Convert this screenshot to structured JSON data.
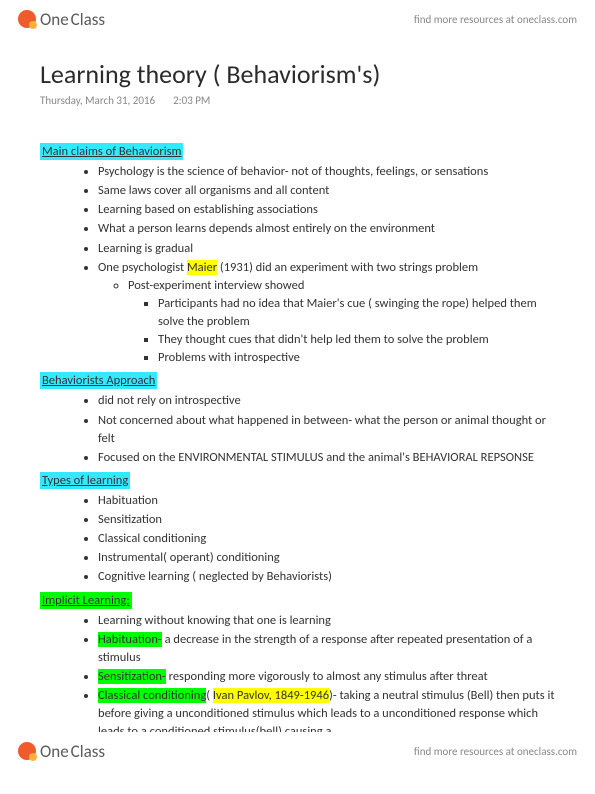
{
  "brand": {
    "one": "One",
    "class": "Class"
  },
  "tagline": "find more resources at oneclass.com",
  "title": "Learning theory ( Behaviorism's)",
  "meta": {
    "date": "Thursday, March 31, 2016",
    "time": "2:03 PM"
  },
  "sections": {
    "main_claims": {
      "heading": "Main claims of Behaviorism",
      "items": [
        "Psychology is the science of behavior- not of thoughts, feelings, or sensations",
        "Same laws cover all organisms and all content",
        "Learning based on establishing associations",
        "What a person learns depends almost entirely on the environment",
        "Learning is gradual"
      ],
      "maier_pre": "One psychologist ",
      "maier_hl": "Maier",
      "maier_post": " (1931) did an experiment with two strings problem",
      "sub1": "Post-experiment interview showed",
      "sub2a": "Participants had no idea that Maier's cue ( swinging the rope) helped them solve the problem",
      "sub2b": "They thought cues that didn't help led them to solve the problem",
      "sub2c": "Problems with introspective"
    },
    "approach": {
      "heading": "Behaviorists Approach",
      "items": [
        "did not rely on introspective",
        "Not concerned about what happened in between- what the person or animal thought or felt",
        "Focused on the ENVIRONMENTAL STIMULUS and the animal's BEHAVIORAL REPSONSE"
      ]
    },
    "types": {
      "heading": "Types of learning",
      "items": [
        "Habituation",
        "Sensitization",
        "Classical conditioning",
        "Instrumental( operant) conditioning",
        "Cognitive learning ( neglected by Behaviorists)"
      ]
    },
    "implicit": {
      "heading": "Implicit Learning:",
      "intro": "Learning without knowing that one is learning",
      "hab_hl": "Habituation-",
      "hab_txt": " a decrease in the strength of a response after repeated presentation of a stimulus",
      "sens_hl": "Sensitization-",
      "sens_txt": " responding more vigorously to almost any stimulus after threat",
      "cc_hl": "Classical conditioning",
      "cc_paren_open": "( ",
      "cc_pavlov": "Ivan Pavlov, 1849-1946",
      "cc_txt": ")- taking a neutral stimulus (Bell) then puts it before giving a unconditioned stimulus which leads to a unconditioned response which leads to a conditioned stimulus(bell) causing a"
    }
  },
  "colors": {
    "cyan": "#33e9ff",
    "yellow": "#ffff00",
    "green": "#00ff00",
    "orange": "#f15a29",
    "second_orange": "#fbb040"
  }
}
